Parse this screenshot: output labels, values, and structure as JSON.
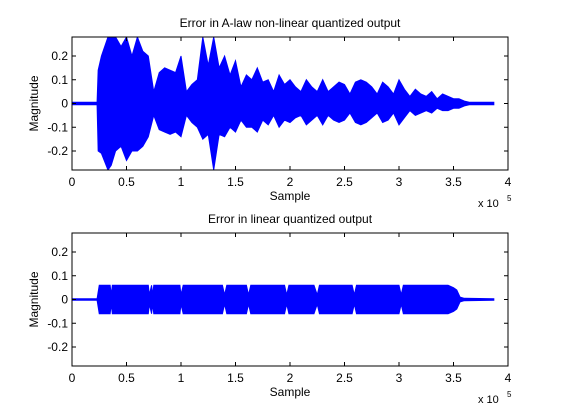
{
  "figure": {
    "background": "#ffffff",
    "series_color": "#0000ff"
  },
  "chart_data": [
    {
      "type": "line",
      "title": "Error in A-law non-linear quantized output",
      "xlabel": "Sample",
      "ylabel": "Magnitude",
      "xlim": [
        0,
        400000
      ],
      "ylim": [
        -0.28,
        0.28
      ],
      "x_ticks": [
        0,
        50000,
        100000,
        150000,
        200000,
        250000,
        300000,
        350000,
        400000
      ],
      "x_tick_labels": [
        "0",
        "0.5",
        "1",
        "1.5",
        "2",
        "2.5",
        "3",
        "3.5",
        "4"
      ],
      "y_ticks": [
        -0.2,
        -0.1,
        0,
        0.1,
        0.2
      ],
      "y_tick_labels": [
        "-0.2",
        "-0.1",
        "0",
        "0.1",
        "0.2"
      ],
      "x_exponent_base": "x 10",
      "x_exponent_power": "5",
      "grid": false,
      "series": [
        {
          "color": "#0000ff",
          "x": [
            0,
            23000,
            24000,
            27000,
            33000,
            36000,
            40000,
            45000,
            50000,
            55000,
            60000,
            65000,
            70000,
            75000,
            80000,
            85000,
            90000,
            95000,
            100000,
            105000,
            110000,
            115000,
            120000,
            125000,
            130000,
            135000,
            140000,
            145000,
            150000,
            155000,
            160000,
            165000,
            170000,
            175000,
            180000,
            185000,
            190000,
            195000,
            200000,
            205000,
            210000,
            215000,
            220000,
            225000,
            230000,
            235000,
            240000,
            245000,
            250000,
            255000,
            260000,
            265000,
            270000,
            275000,
            280000,
            285000,
            290000,
            295000,
            300000,
            305000,
            310000,
            315000,
            320000,
            325000,
            330000,
            335000,
            340000,
            345000,
            350000,
            355000,
            360000,
            365000,
            370000,
            375000,
            380000,
            387000
          ],
          "y_max": [
            0.005,
            0.005,
            0.14,
            0.2,
            0.28,
            0.28,
            0.28,
            0.24,
            0.28,
            0.2,
            0.28,
            0.22,
            0.2,
            0.05,
            0.13,
            0.15,
            0.14,
            0.13,
            0.2,
            0.05,
            0.08,
            0.1,
            0.28,
            0.16,
            0.28,
            0.15,
            0.2,
            0.12,
            0.18,
            0.07,
            0.12,
            0.1,
            0.15,
            0.09,
            0.1,
            0.05,
            0.12,
            0.08,
            0.1,
            0.07,
            0.05,
            0.1,
            0.07,
            0.05,
            0.1,
            0.05,
            0.07,
            0.09,
            0.08,
            0.04,
            0.09,
            0.1,
            0.09,
            0.07,
            0.04,
            0.09,
            0.07,
            0.04,
            0.1,
            0.06,
            0.03,
            0.06,
            0.04,
            0.03,
            0.05,
            0.02,
            0.04,
            0.03,
            0.02,
            0.02,
            0.01,
            0.005,
            0.005,
            0.005,
            0.005,
            0.005
          ],
          "y_min": [
            -0.005,
            -0.005,
            -0.2,
            -0.21,
            -0.28,
            -0.26,
            -0.2,
            -0.18,
            -0.24,
            -0.2,
            -0.2,
            -0.18,
            -0.14,
            -0.05,
            -0.11,
            -0.12,
            -0.13,
            -0.12,
            -0.14,
            -0.05,
            -0.08,
            -0.1,
            -0.15,
            -0.13,
            -0.28,
            -0.13,
            -0.14,
            -0.1,
            -0.12,
            -0.07,
            -0.1,
            -0.1,
            -0.12,
            -0.07,
            -0.09,
            -0.05,
            -0.1,
            -0.07,
            -0.08,
            -0.06,
            -0.05,
            -0.09,
            -0.07,
            -0.05,
            -0.09,
            -0.05,
            -0.07,
            -0.08,
            -0.07,
            -0.04,
            -0.08,
            -0.09,
            -0.08,
            -0.06,
            -0.04,
            -0.08,
            -0.07,
            -0.04,
            -0.09,
            -0.06,
            -0.03,
            -0.05,
            -0.04,
            -0.03,
            -0.04,
            -0.02,
            -0.03,
            -0.03,
            -0.02,
            -0.02,
            -0.01,
            -0.005,
            -0.005,
            -0.005,
            -0.005,
            -0.005
          ]
        }
      ]
    },
    {
      "type": "line",
      "title": "Error in linear quantized output",
      "xlabel": "Sample",
      "ylabel": "Magnitude",
      "xlim": [
        0,
        400000
      ],
      "ylim": [
        -0.28,
        0.28
      ],
      "x_ticks": [
        0,
        50000,
        100000,
        150000,
        200000,
        250000,
        300000,
        350000,
        400000
      ],
      "x_tick_labels": [
        "0",
        "0.5",
        "1",
        "1.5",
        "2",
        "2.5",
        "3",
        "3.5",
        "4"
      ],
      "y_ticks": [
        -0.2,
        -0.1,
        0,
        0.1,
        0.2
      ],
      "y_tick_labels": [
        "-0.2",
        "-0.1",
        "0",
        "0.1",
        "0.2"
      ],
      "x_exponent_base": "x 10",
      "x_exponent_power": "5",
      "grid": false,
      "series": [
        {
          "color": "#0000ff",
          "x": [
            0,
            23000,
            25000,
            35000,
            36000,
            37000,
            70000,
            71000,
            73000,
            74000,
            75000,
            99000,
            100000,
            102000,
            138000,
            140000,
            142000,
            145000,
            160000,
            162000,
            164000,
            166000,
            195000,
            197000,
            199000,
            201000,
            222000,
            225000,
            227000,
            230000,
            257000,
            259000,
            261000,
            263000,
            300000,
            302000,
            304000,
            306000,
            340000,
            342000,
            345000,
            350000,
            353000,
            356000,
            360000,
            387000
          ],
          "y_max": [
            0.003,
            0.003,
            0.06,
            0.06,
            0.02,
            0.06,
            0.06,
            0.02,
            0.06,
            0.02,
            0.06,
            0.06,
            0.02,
            0.06,
            0.06,
            0.02,
            0.06,
            0.06,
            0.06,
            0.02,
            0.06,
            0.06,
            0.06,
            0.02,
            0.06,
            0.06,
            0.06,
            0.02,
            0.06,
            0.06,
            0.06,
            0.02,
            0.06,
            0.06,
            0.06,
            0.02,
            0.06,
            0.06,
            0.06,
            0.06,
            0.06,
            0.05,
            0.04,
            0.01,
            0.005,
            0.003
          ],
          "y_min": [
            -0.003,
            -0.003,
            -0.06,
            -0.06,
            -0.02,
            -0.06,
            -0.06,
            -0.02,
            -0.06,
            -0.02,
            -0.06,
            -0.06,
            -0.02,
            -0.06,
            -0.06,
            -0.02,
            -0.06,
            -0.06,
            -0.06,
            -0.02,
            -0.06,
            -0.06,
            -0.06,
            -0.02,
            -0.06,
            -0.06,
            -0.06,
            -0.02,
            -0.06,
            -0.06,
            -0.06,
            -0.02,
            -0.06,
            -0.06,
            -0.06,
            -0.02,
            -0.06,
            -0.06,
            -0.06,
            -0.06,
            -0.06,
            -0.05,
            -0.04,
            -0.01,
            -0.005,
            -0.003
          ]
        }
      ]
    }
  ]
}
